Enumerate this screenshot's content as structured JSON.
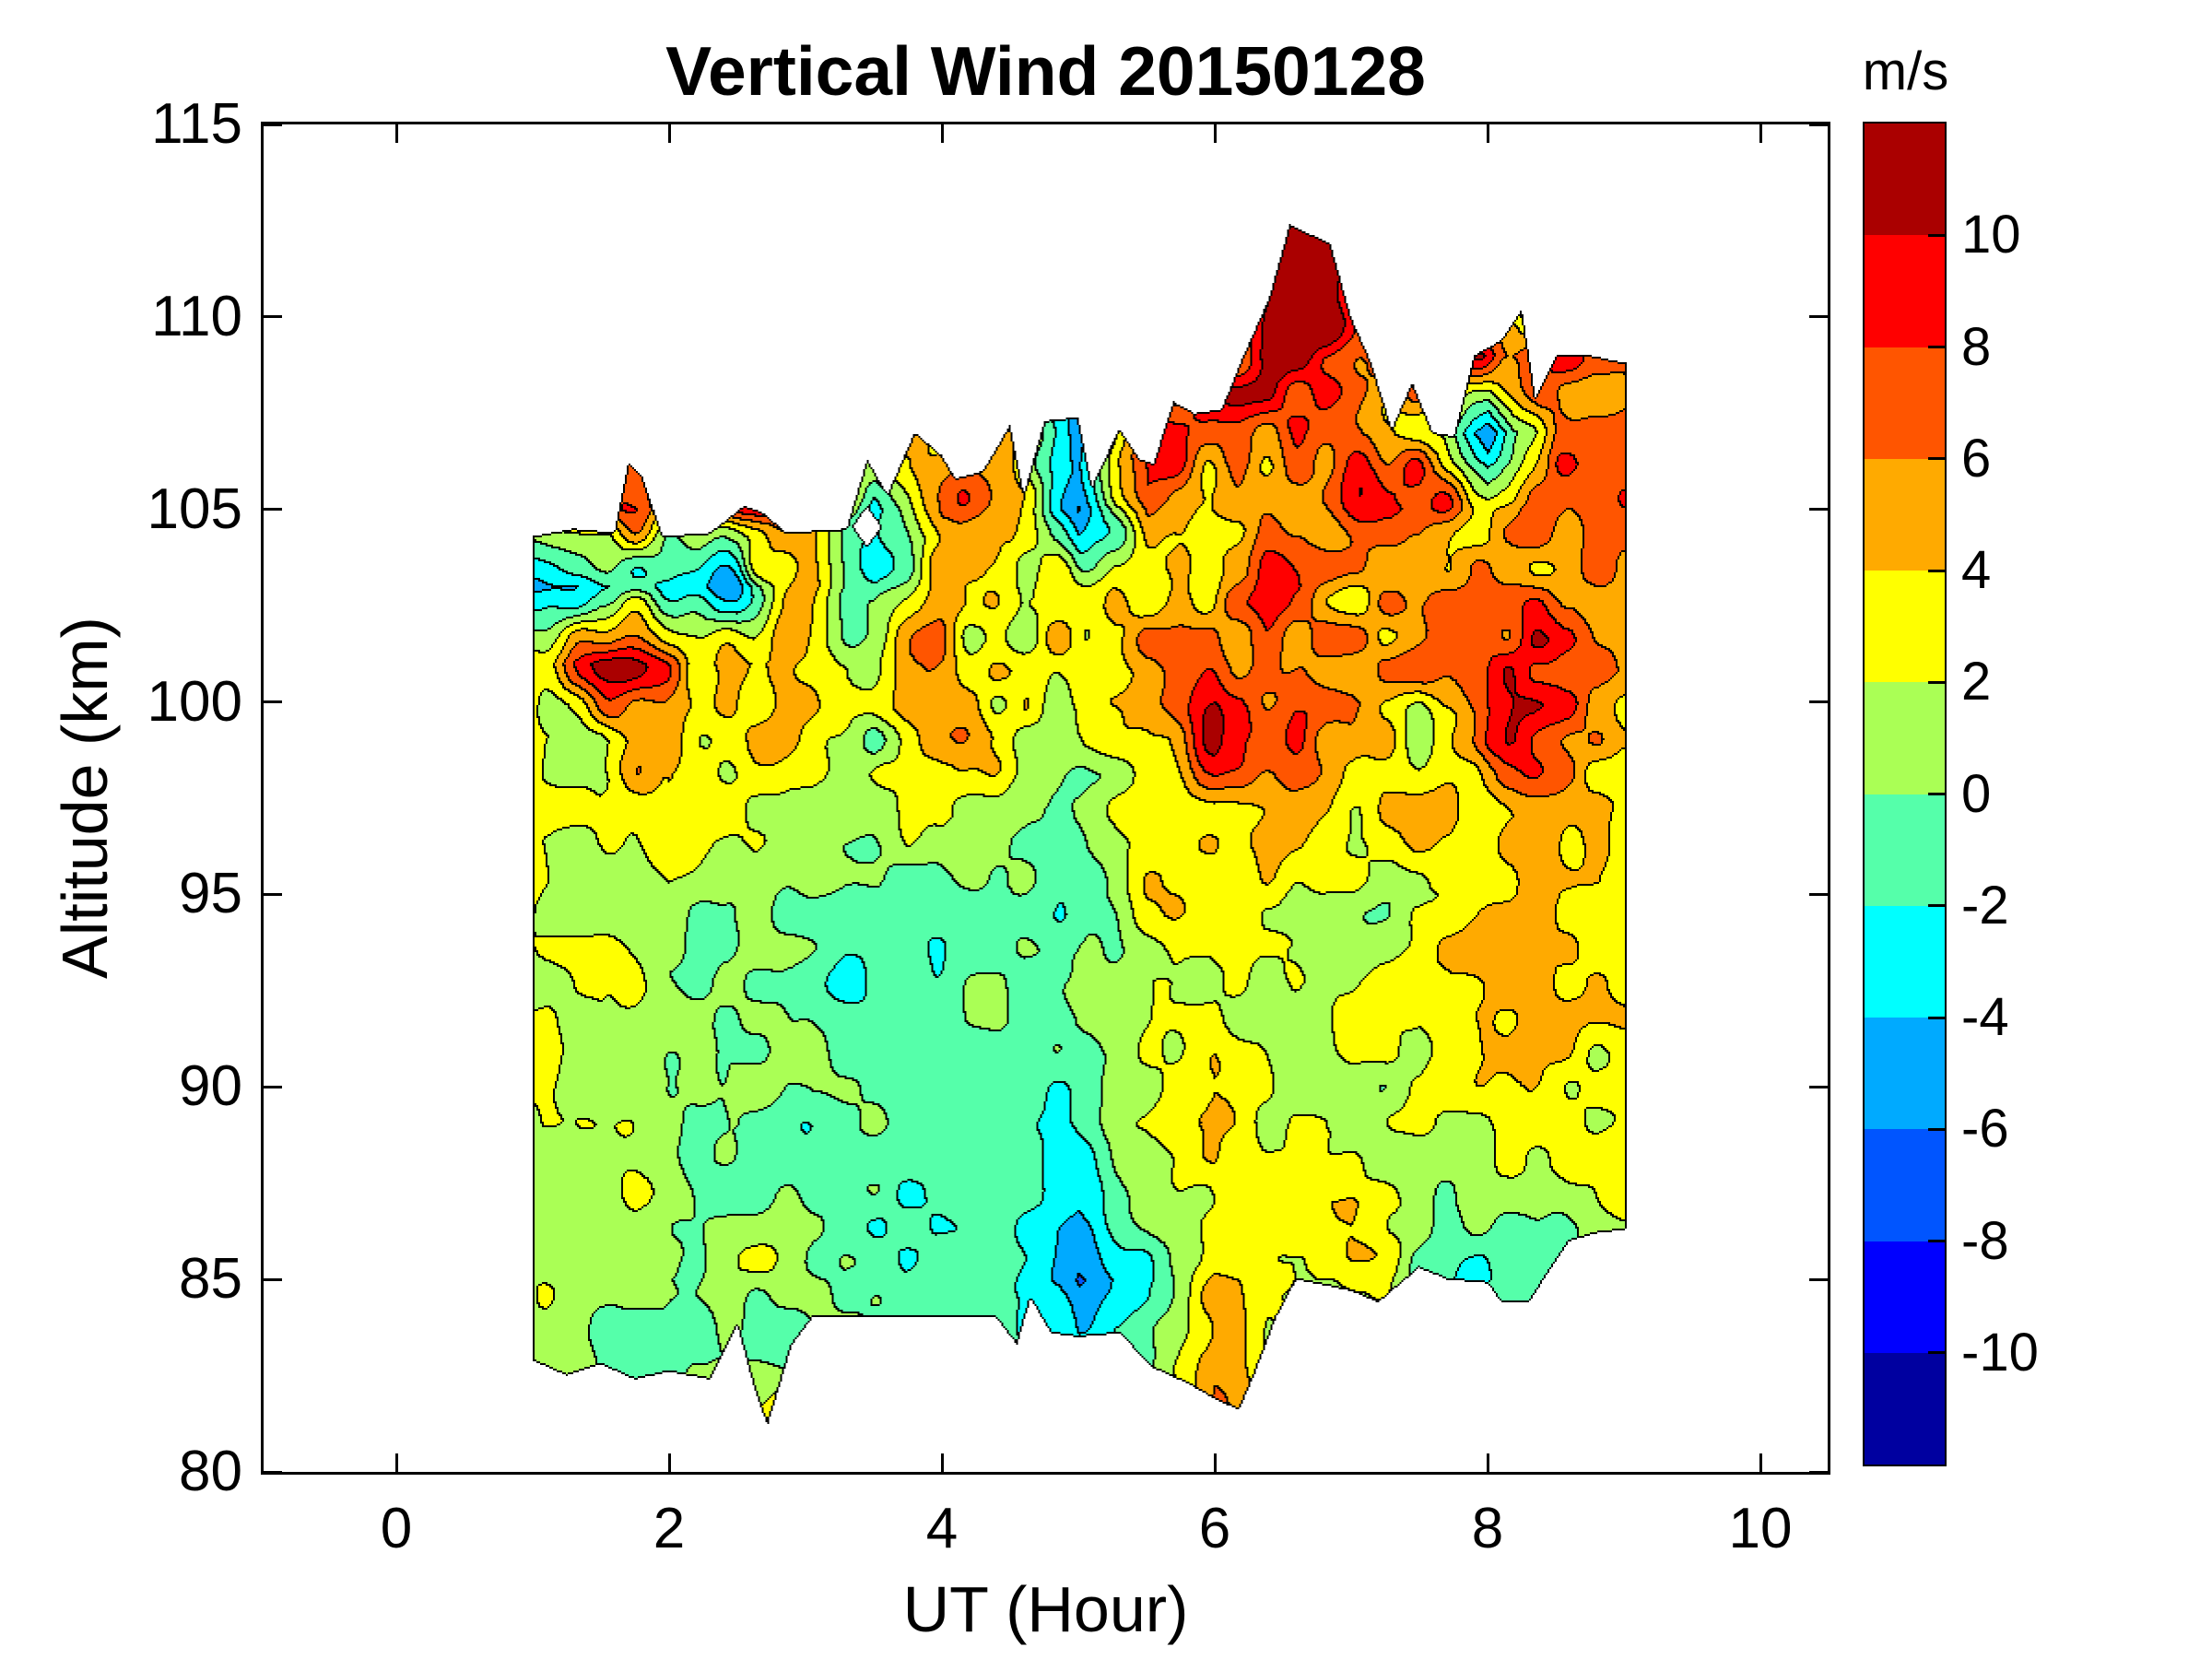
{
  "title": "Vertical Wind 20150128",
  "axes": {
    "x_label": "UT (Hour)",
    "y_label": "Altitude (km)",
    "x_tick_labels": [
      "0",
      "2",
      "4",
      "6",
      "8",
      "10"
    ],
    "x_tick_values": [
      0,
      2,
      4,
      6,
      8,
      10
    ],
    "y_tick_labels": [
      "80",
      "85",
      "90",
      "95",
      "100",
      "105",
      "110",
      "115"
    ],
    "y_tick_values": [
      80,
      85,
      90,
      95,
      100,
      105,
      110,
      115
    ],
    "x_range": [
      -1.0,
      10.5
    ],
    "y_range": [
      80,
      115
    ]
  },
  "colorbar": {
    "unit_label": "m/s",
    "tick_labels": [
      "10",
      "8",
      "6",
      "4",
      "2",
      "0",
      "-2",
      "-4",
      "-6",
      "-8",
      "-10"
    ],
    "tick_values": [
      10,
      8,
      6,
      4,
      2,
      0,
      -2,
      -4,
      -6,
      -8,
      -10
    ],
    "band_colors_top_to_bottom": [
      "#AA0000",
      "#FF0000",
      "#FF5500",
      "#FFAA00",
      "#FFFF00",
      "#AAFF55",
      "#55FFAA",
      "#00FFFF",
      "#00AAFF",
      "#0055FF",
      "#0000FF",
      "#0000A0"
    ]
  },
  "chart_data": {
    "type": "filled_contour",
    "title": "Vertical Wind 20150128",
    "xlabel": "UT (Hour)",
    "ylabel": "Altitude (km)",
    "unit": "m/s",
    "xlim": [
      -1.0,
      10.5
    ],
    "ylim": [
      80,
      115
    ],
    "grid_on": false,
    "levels": [
      -12,
      -10,
      -8,
      -6,
      -4,
      -2,
      0,
      2,
      4,
      6,
      8,
      10,
      12
    ],
    "band_colors_low_to_high": [
      "#0000A0",
      "#0000FF",
      "#0055FF",
      "#00AAFF",
      "#00FFFF",
      "#55FFAA",
      "#AAFF55",
      "#FFFF00",
      "#FFAA00",
      "#FF5500",
      "#FF0000",
      "#AA0000"
    ],
    "contour_line_color": "#000000",
    "grid_ut": [
      1.0,
      1.5,
      2.0,
      2.5,
      3.0,
      3.5,
      4.0,
      4.5,
      5.0,
      5.5,
      6.0,
      6.5,
      7.0,
      7.5,
      8.0,
      8.5,
      9.0
    ],
    "grid_alt": [
      81,
      83,
      85,
      87,
      89,
      91,
      93,
      95,
      97,
      99,
      101,
      103,
      105,
      107,
      109,
      111
    ],
    "values_mps": [
      [
        0,
        0,
        0,
        2,
        5,
        0,
        0,
        0,
        -2,
        0,
        4,
        1,
        1,
        1,
        1,
        1,
        1
      ],
      [
        1,
        0,
        1,
        0,
        -1,
        0,
        -1,
        0,
        -4,
        -1,
        5,
        2,
        1,
        1,
        2,
        1,
        1
      ],
      [
        2,
        1,
        0,
        1,
        0,
        -1,
        0,
        -1,
        -6,
        -2,
        5,
        3,
        1,
        0,
        -1,
        -2,
        2
      ],
      [
        1,
        0,
        1,
        0,
        0,
        -1,
        -1,
        0,
        -2,
        0,
        3,
        2,
        5,
        1,
        2,
        1,
        3
      ],
      [
        1,
        1,
        0,
        1,
        -1,
        0,
        -1,
        -1,
        -1,
        1,
        4,
        1,
        1,
        3,
        1,
        2,
        3
      ],
      [
        3,
        1,
        1,
        0,
        0,
        -1,
        -2,
        -1,
        0,
        1,
        3,
        1,
        3,
        1,
        3,
        3,
        3
      ],
      [
        1,
        3,
        0,
        1,
        0,
        -1,
        -2,
        -2,
        -1,
        1,
        3,
        3,
        1,
        3,
        5,
        3,
        3
      ],
      [
        3,
        1,
        3,
        1,
        1,
        0,
        -1,
        -1,
        0,
        3,
        5,
        3,
        3,
        1,
        3,
        3,
        3
      ],
      [
        3,
        3,
        5,
        3,
        1,
        1,
        3,
        1,
        1,
        3,
        5,
        5,
        3,
        5,
        3,
        5,
        3
      ],
      [
        5,
        3,
        7,
        3,
        3,
        1,
        3,
        1,
        1,
        3,
        7,
        5,
        5,
        3,
        7,
        5,
        5
      ],
      [
        7,
        9,
        7,
        5,
        3,
        1,
        3,
        3,
        3,
        5,
        7,
        5,
        7,
        5,
        5,
        7,
        5
      ],
      [
        -5,
        -2,
        0,
        -3,
        7,
        0,
        5,
        3,
        3,
        5,
        5,
        7,
        5,
        7,
        7,
        5,
        7
      ],
      [
        3,
        5,
        5,
        7,
        5,
        -3,
        7,
        5,
        -7,
        5,
        7,
        5,
        7,
        9,
        5,
        7,
        7
      ],
      [
        0,
        0,
        0,
        0,
        0,
        3,
        5,
        7,
        -5,
        9,
        7,
        7,
        7,
        5,
        -7,
        7,
        7
      ],
      [
        0,
        0,
        0,
        0,
        0,
        0,
        0,
        0,
        0,
        3,
        7,
        11,
        9,
        7,
        9,
        7,
        7
      ],
      [
        0,
        0,
        0,
        0,
        0,
        0,
        0,
        0,
        0,
        0,
        5,
        11,
        9,
        0,
        0,
        0,
        0
      ]
    ],
    "data_region": {
      "ut_bottom": [
        1.0,
        1.25,
        1.5,
        1.75,
        2.0,
        2.3,
        2.5,
        2.62,
        2.72,
        2.9,
        3.05,
        4.4,
        4.55,
        4.65,
        4.8,
        5.0,
        5.3,
        5.55,
        5.8,
        6.0,
        6.18,
        6.3,
        6.45,
        6.6,
        7.0,
        7.2,
        7.5,
        7.7,
        8.0,
        8.1,
        8.3,
        8.45,
        8.6,
        8.8,
        9.02
      ],
      "alt_bottom": [
        82.9,
        82.5,
        82.8,
        82.4,
        82.6,
        82.4,
        83.8,
        82.2,
        81.2,
        83.3,
        84.0,
        84.0,
        83.3,
        84.5,
        83.6,
        83.5,
        83.6,
        82.7,
        82.3,
        81.9,
        81.6,
        82.6,
        84.0,
        85.0,
        84.7,
        84.4,
        85.3,
        85.0,
        84.9,
        84.4,
        84.4,
        85.2,
        86.0,
        86.2,
        86.3
      ],
      "ut_top": [
        1.0,
        1.3,
        1.6,
        1.7,
        1.8,
        1.95,
        2.3,
        2.55,
        2.7,
        2.85,
        3.3,
        3.45,
        3.6,
        3.8,
        4.0,
        4.1,
        4.3,
        4.5,
        4.6,
        4.75,
        5.0,
        5.1,
        5.3,
        5.45,
        5.55,
        5.7,
        5.85,
        6.05,
        6.2,
        6.4,
        6.55,
        6.85,
        7.0,
        7.15,
        7.3,
        7.45,
        7.6,
        7.75,
        7.9,
        8.1,
        8.25,
        8.35,
        8.5,
        8.75,
        9.02
      ],
      "alt_top": [
        104.3,
        104.5,
        104.4,
        106.2,
        105.9,
        104.3,
        104.4,
        105.1,
        104.9,
        104.4,
        104.5,
        106.3,
        105.4,
        107.0,
        106.4,
        105.8,
        106.0,
        107.2,
        105.4,
        107.3,
        107.4,
        105.6,
        107.1,
        106.3,
        106.2,
        107.8,
        107.5,
        107.6,
        108.9,
        110.5,
        112.4,
        111.9,
        110.0,
        108.8,
        107.1,
        108.3,
        107.0,
        106.9,
        109.0,
        109.4,
        110.2,
        107.9,
        109.0,
        109.0,
        108.8
      ],
      "ut_min": 1.0,
      "ut_max": 9.02
    },
    "holes": [
      {
        "ut": 3.45,
        "alt": 104.55,
        "ru": 0.1,
        "ra": 0.5
      }
    ],
    "texture": {
      "seed": 11,
      "octaves": [
        {
          "wavelength_ut": 0.55,
          "wavelength_alt": 2.2,
          "amplitude": 1.6
        },
        {
          "wavelength_ut": 0.22,
          "wavelength_alt": 0.9,
          "amplitude": 1.15
        }
      ],
      "high_altitude_boost": {
        "start_alt": 96,
        "ramp_km": 4,
        "factor": 1.95
      }
    }
  }
}
